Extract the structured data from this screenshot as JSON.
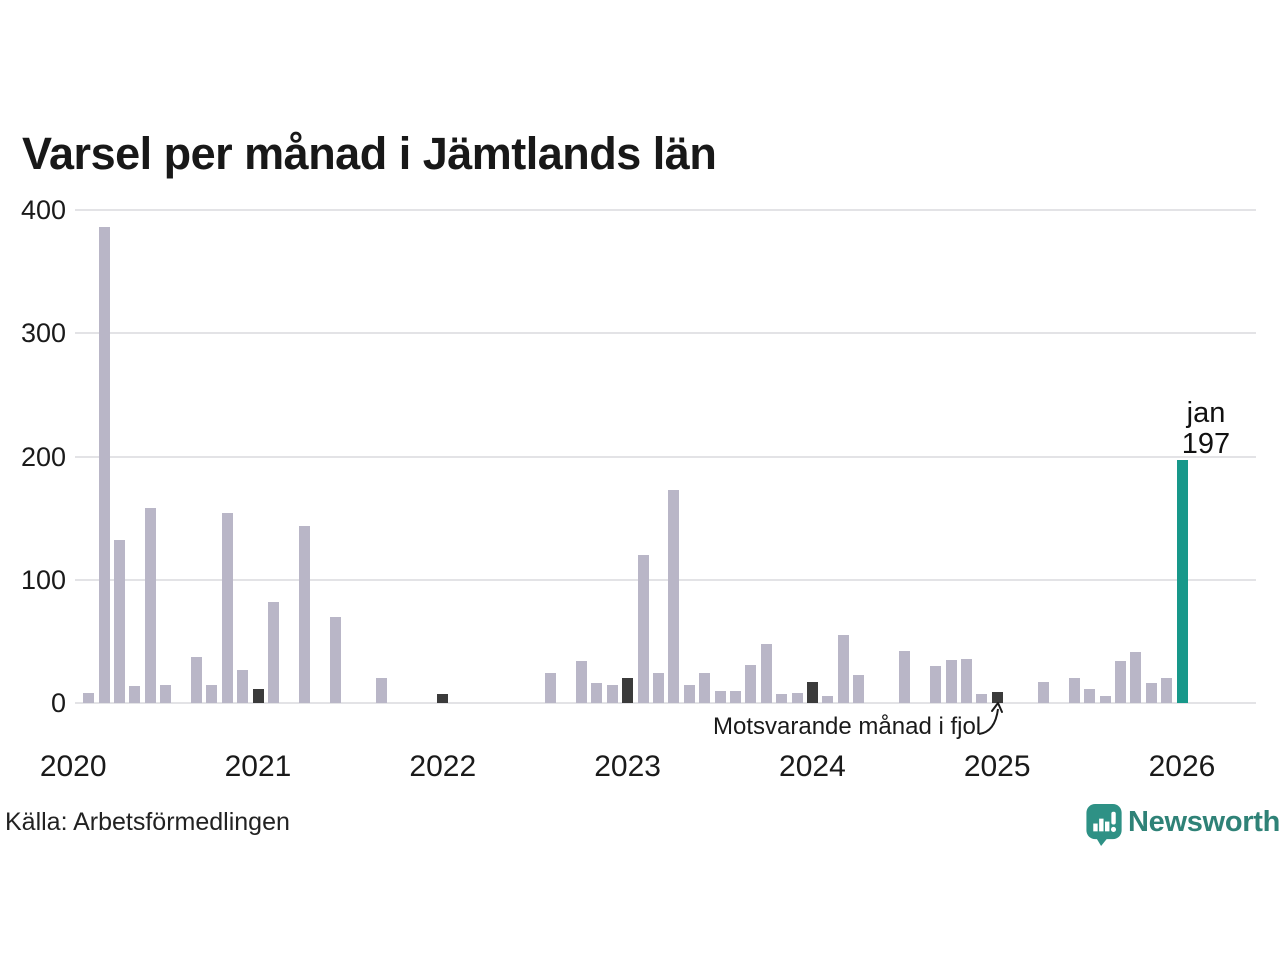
{
  "title": "Varsel per månad i Jämtlands län",
  "source": "Källa: Arbetsförmedlingen",
  "branding": {
    "name": "Newsworthy"
  },
  "annotation": {
    "label": "Motsvarande månad i fjol",
    "target_month": "2025-01"
  },
  "latest_annotation": {
    "month_label": "jan",
    "value": "197"
  },
  "colors": {
    "bar_regular": "#b9b6c7",
    "bar_last_year": "#3b3b3b",
    "bar_latest": "#17988a",
    "grid": "#e3e3e6",
    "text": "#1a1a1a",
    "brand_teal": "#2e9185"
  },
  "chart_data": {
    "type": "bar",
    "title": "Varsel per månad i Jämtlands län",
    "xlabel": "",
    "ylabel": "",
    "ylim": [
      0,
      400
    ],
    "yticks": [
      0,
      100,
      200,
      300,
      400
    ],
    "grid": "horizontal",
    "start_month": "2020-01",
    "end_month": "2026-01",
    "year_ticks": [
      2020,
      2021,
      2022,
      2023,
      2024,
      2025,
      2026
    ],
    "highlight_months": [
      "2021-01",
      "2022-01",
      "2023-01",
      "2024-01",
      "2025-01"
    ],
    "latest_month": "2026-01",
    "values": [
      null,
      8,
      386,
      132,
      14,
      158,
      15,
      null,
      37,
      15,
      154,
      27,
      11,
      82,
      null,
      144,
      null,
      70,
      null,
      null,
      20,
      null,
      null,
      null,
      7,
      null,
      null,
      null,
      null,
      null,
      null,
      24,
      null,
      34,
      16,
      15,
      20,
      120,
      24,
      173,
      15,
      24,
      10,
      10,
      31,
      48,
      7,
      8,
      17,
      6,
      55,
      23,
      null,
      null,
      42,
      null,
      30,
      35,
      36,
      7,
      9,
      null,
      null,
      17,
      null,
      20,
      11,
      6,
      34,
      41,
      16,
      20,
      197
    ]
  }
}
